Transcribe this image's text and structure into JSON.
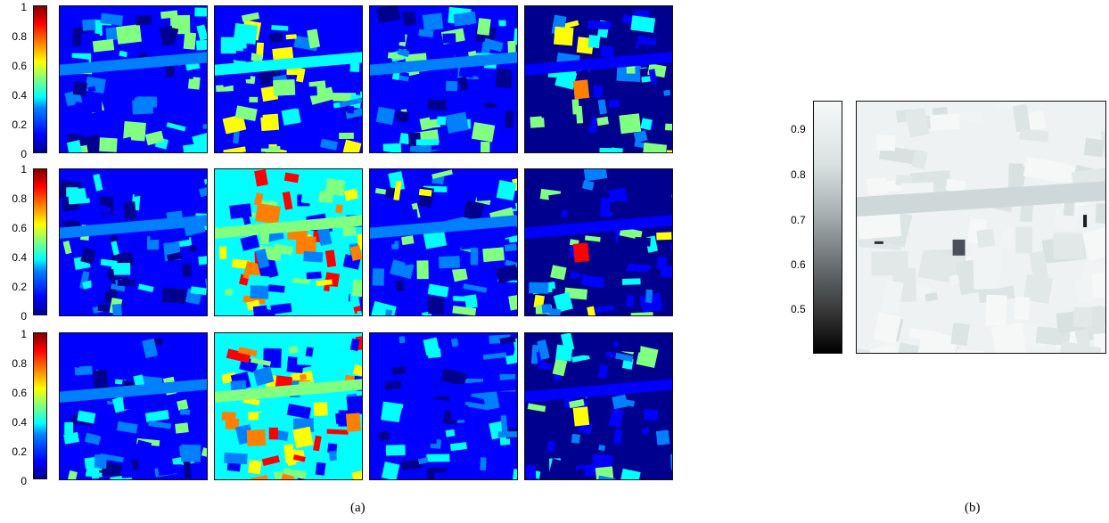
{
  "panel_a": {
    "caption": "(a)",
    "colorbar_ticks": [
      "1",
      "0.8",
      "0.6",
      "0.4",
      "0.2",
      "0"
    ],
    "colormap": "jet",
    "rows": 3,
    "cols": 4
  },
  "panel_b": {
    "caption": "(b)",
    "colorbar_ticks": [
      "0.9",
      "0.8",
      "0.7",
      "0.6",
      "0.5"
    ],
    "colormap": "gray-bone"
  }
}
